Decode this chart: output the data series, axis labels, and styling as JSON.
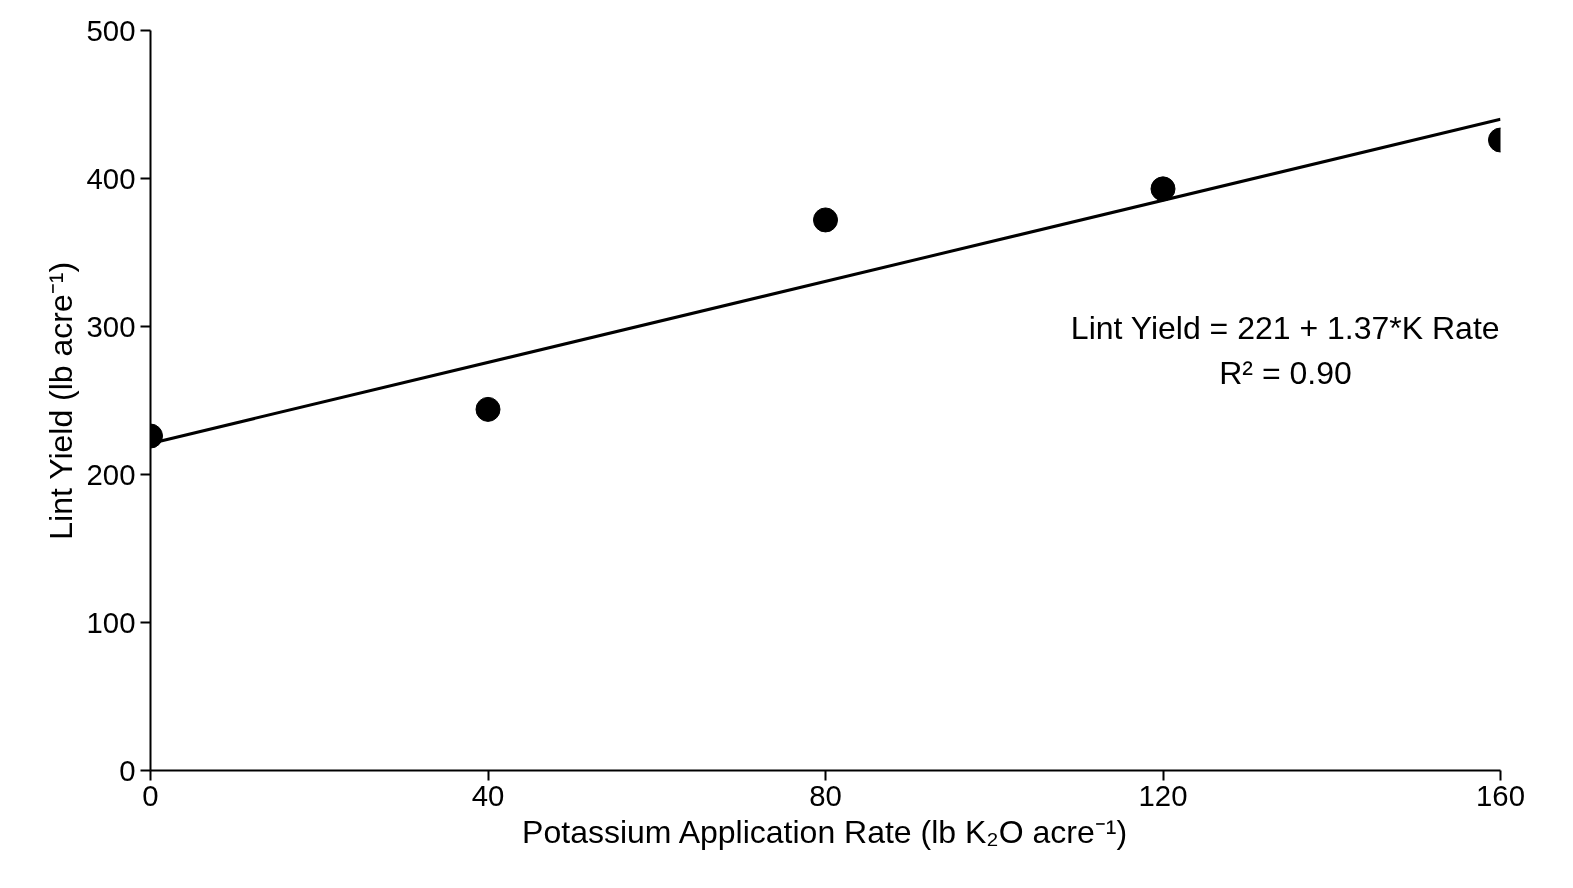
{
  "chart_data": {
    "type": "scatter",
    "xlabel": "Potassium Application Rate (lb K₂O acre⁻¹)",
    "ylabel": "Lint Yield (lb acre⁻¹)",
    "x": [
      0,
      40,
      80,
      120,
      160
    ],
    "series": [
      {
        "color": "#000000",
        "marker": "circle",
        "values": [
          226,
          244,
          372,
          393,
          426
        ]
      },
      {
        "type": "line",
        "color": "#000000",
        "marker": "none",
        "line_style": "solid",
        "x": [
          0,
          160
        ],
        "values": [
          221,
          440
        ]
      }
    ],
    "xlim": [
      0,
      160
    ],
    "xticks": [
      0,
      40,
      80,
      120,
      160
    ],
    "ylim": [
      0,
      500
    ],
    "yticks": [
      0,
      100,
      200,
      300,
      400,
      500
    ],
    "grid": false,
    "annotations": [
      "Lint Yield = 221 + 1.37*K Rate",
      "R² = 0.90"
    ]
  }
}
